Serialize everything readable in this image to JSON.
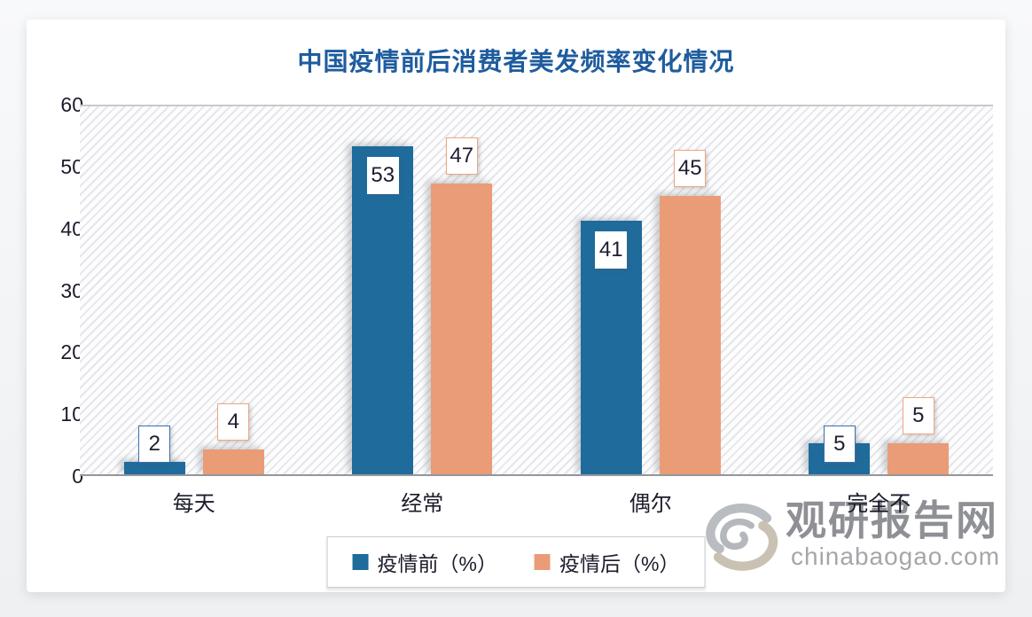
{
  "title": "中国疫情前后消费者美发频率变化情况",
  "chart_data": {
    "type": "bar",
    "categories": [
      "每天",
      "经常",
      "偶尔",
      "完全不"
    ],
    "series": [
      {
        "name": "疫情前（%）",
        "color": "#1e6b9c",
        "values": [
          2,
          53,
          41,
          5
        ]
      },
      {
        "name": "疫情后（%）",
        "color": "#ea9c76",
        "values": [
          4,
          47,
          45,
          5
        ]
      }
    ],
    "ylim": [
      0,
      60
    ],
    "yticks": [
      0,
      10,
      20,
      30,
      40,
      50,
      60
    ],
    "xlabel": "",
    "ylabel": "",
    "grid": false,
    "legend_position": "bottom",
    "plot_background": "diagonal-hatch",
    "data_labels": true
  },
  "watermark": {
    "site_name": "观研报告网",
    "site_url": "chinabaogao.com"
  },
  "colors": {
    "title": "#1e5c9e",
    "series_before": "#1e6b9c",
    "series_after": "#ea9c76",
    "axis_text": "#1b1b2b",
    "watermark_text": "#8e9095"
  }
}
